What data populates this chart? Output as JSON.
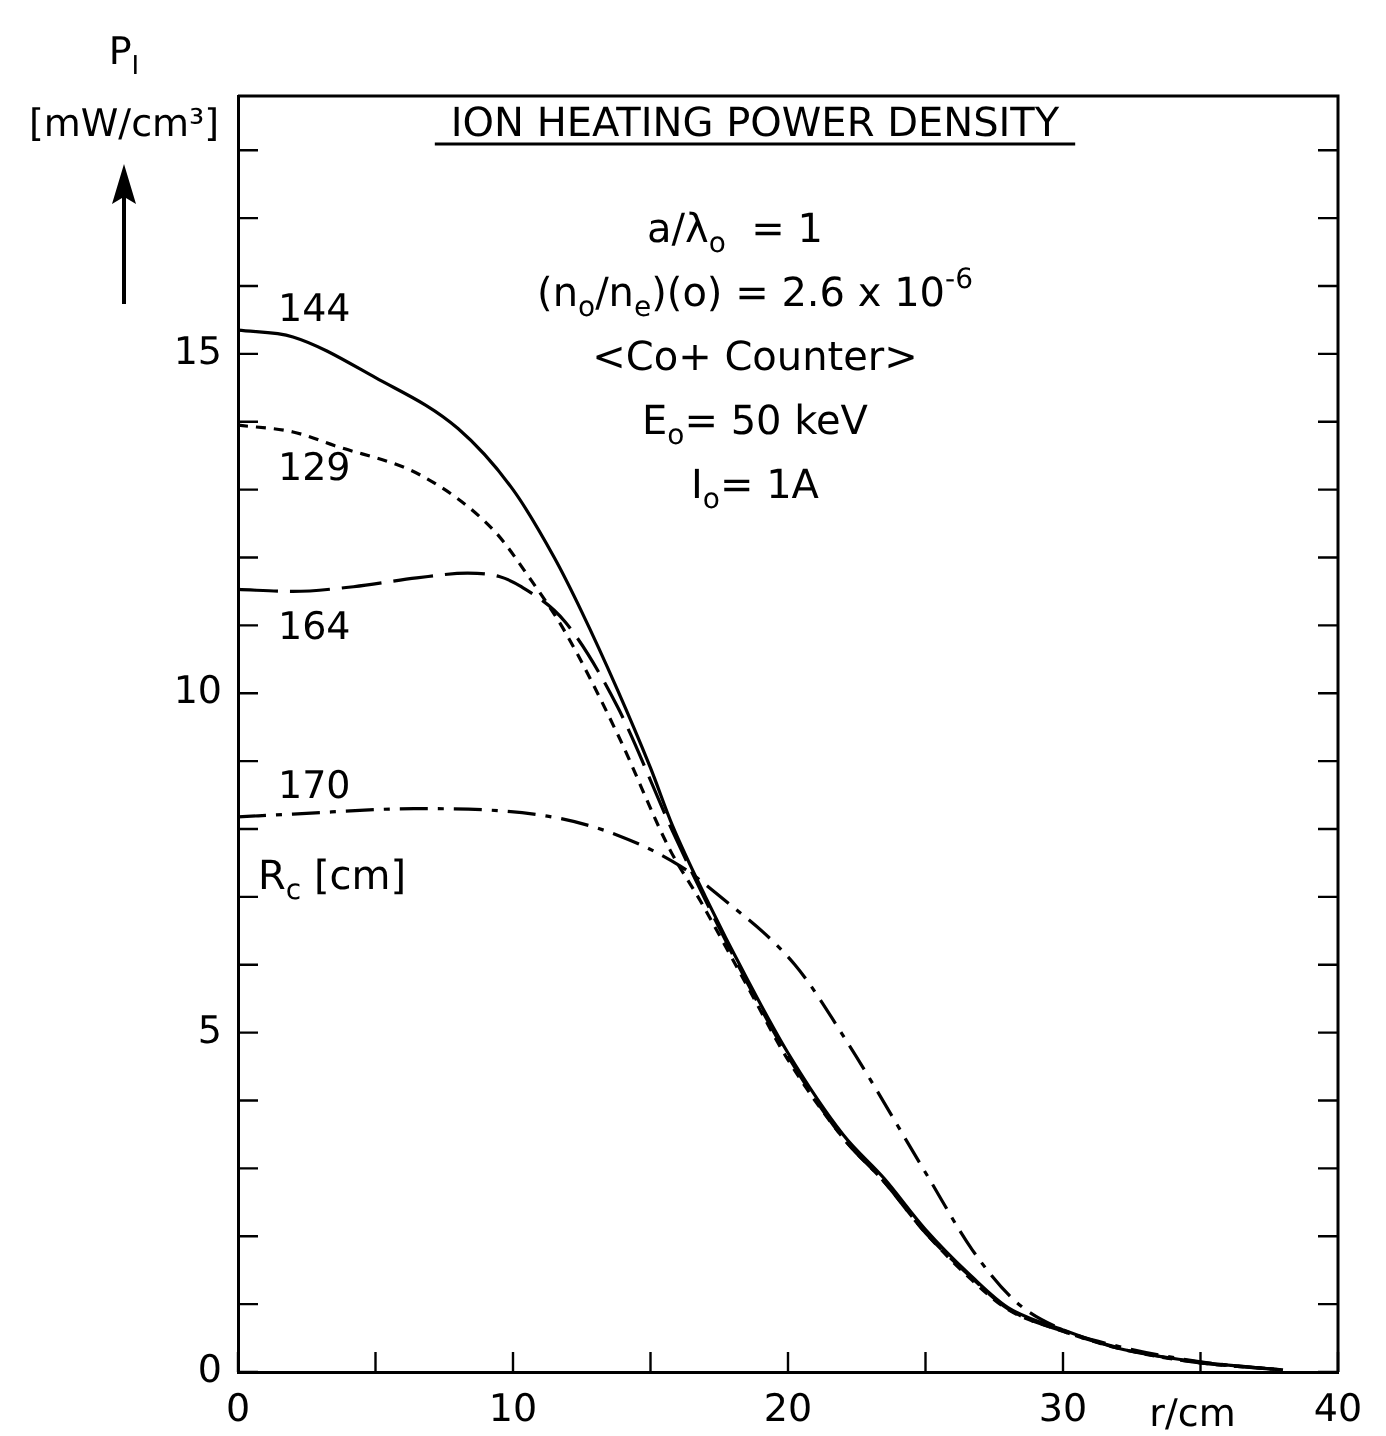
{
  "chart_data": {
    "type": "line",
    "title": "ION HEATING POWER DENSITY",
    "xlabel": "r/cm",
    "ylabel": "P$_{I}$ [mW/cm³]",
    "xlim": [
      0,
      40
    ],
    "xticks": [
      0,
      {
        "value": 5,
        "label": null
      },
      10,
      {
        "value": 15,
        "label": null
      },
      20,
      {
        "value": 25,
        "label": null
      },
      30,
      {
        "value": 35,
        "label": null
      },
      40
    ],
    "ylim": [
      0,
      18.8
    ],
    "yticks": [
      0,
      {
        "value": 1,
        "label": null
      },
      {
        "value": 2,
        "label": null
      },
      {
        "value": 3,
        "label": null
      },
      {
        "value": 4,
        "label": null
      },
      5,
      {
        "value": 6,
        "label": null
      },
      {
        "value": 7,
        "label": null
      },
      {
        "value": 8,
        "label": null
      },
      {
        "value": 9,
        "label": null
      },
      10,
      {
        "value": 11,
        "label": null
      },
      {
        "value": 12,
        "label": null
      },
      {
        "value": 13,
        "label": null
      },
      {
        "value": 14,
        "label": null
      },
      15,
      {
        "value": 16,
        "label": null
      },
      {
        "value": 17,
        "label": null
      },
      {
        "value": 18,
        "label": null
      }
    ],
    "grid": false,
    "legend": false,
    "marker": "none",
    "annotations": [
      "a/λ$_{o}$  = 1",
      "(n$_{o}$/n$_{e}$)(o) = 2.6 x 10$^{-6}$",
      "<Co+ Counter>",
      "E$_{o}$= 50 keV",
      "I$_{o}$= 1A",
      "R$_{c}$ [cm]"
    ],
    "series": [
      {
        "name": "144",
        "color": "#000000",
        "line_style": "solid",
        "x": [
          0,
          2,
          5,
          8,
          10,
          11.5,
          12.5,
          13.8,
          15,
          15.8,
          17,
          18.5,
          20,
          22,
          23.5,
          25,
          26.7,
          28,
          30,
          32,
          34.7,
          38
        ],
        "values": [
          15.35,
          15.25,
          14.65,
          13.9,
          13.0,
          12.0,
          11.2,
          10.05,
          8.9,
          8.05,
          7.0,
          5.8,
          4.7,
          3.5,
          2.85,
          2.1,
          1.4,
          0.95,
          0.62,
          0.35,
          0.16,
          0.03
        ]
      },
      {
        "name": "129",
        "color": "#000000",
        "line_style": "dashed",
        "x": [
          0,
          2,
          3.5,
          6.7,
          9.3,
          10.6,
          11.9,
          13.8,
          15.7,
          16.8,
          18.5,
          20,
          22,
          23.5,
          25,
          26.7,
          28,
          30,
          32,
          34.7,
          38
        ],
        "values": [
          13.95,
          13.85,
          13.65,
          13.2,
          12.4,
          11.7,
          10.9,
          9.4,
          7.7,
          6.95,
          5.7,
          4.6,
          3.45,
          2.8,
          2.05,
          1.35,
          0.92,
          0.6,
          0.35,
          0.15,
          0.03
        ]
      },
      {
        "name": "164",
        "color": "#000000",
        "line_style": "longdashed",
        "x": [
          0,
          2,
          4.2,
          6.5,
          8.35,
          9.5,
          10.3,
          11.9,
          13.8,
          15.8,
          17,
          18.5,
          20,
          22,
          23.5,
          25,
          26.7,
          28,
          30,
          32,
          34.7,
          38
        ],
        "values": [
          11.53,
          11.5,
          11.57,
          11.7,
          11.77,
          11.72,
          11.57,
          11.05,
          9.8,
          7.97,
          6.95,
          5.75,
          4.65,
          3.45,
          2.8,
          2.05,
          1.38,
          0.93,
          0.6,
          0.36,
          0.15,
          0.03
        ]
      },
      {
        "name": "170",
        "color": "#000000",
        "line_style": "dashdot",
        "x": [
          0,
          2,
          6.4,
          11.25,
          13.8,
          16.1,
          17.4,
          20.25,
          22.2,
          25.1,
          26.7,
          28.3,
          30,
          32,
          35,
          38
        ],
        "values": [
          8.18,
          8.22,
          8.3,
          8.19,
          7.91,
          7.45,
          7.05,
          6.0,
          4.83,
          2.87,
          1.8,
          1.03,
          0.62,
          0.38,
          0.15,
          0.03
        ]
      }
    ]
  }
}
